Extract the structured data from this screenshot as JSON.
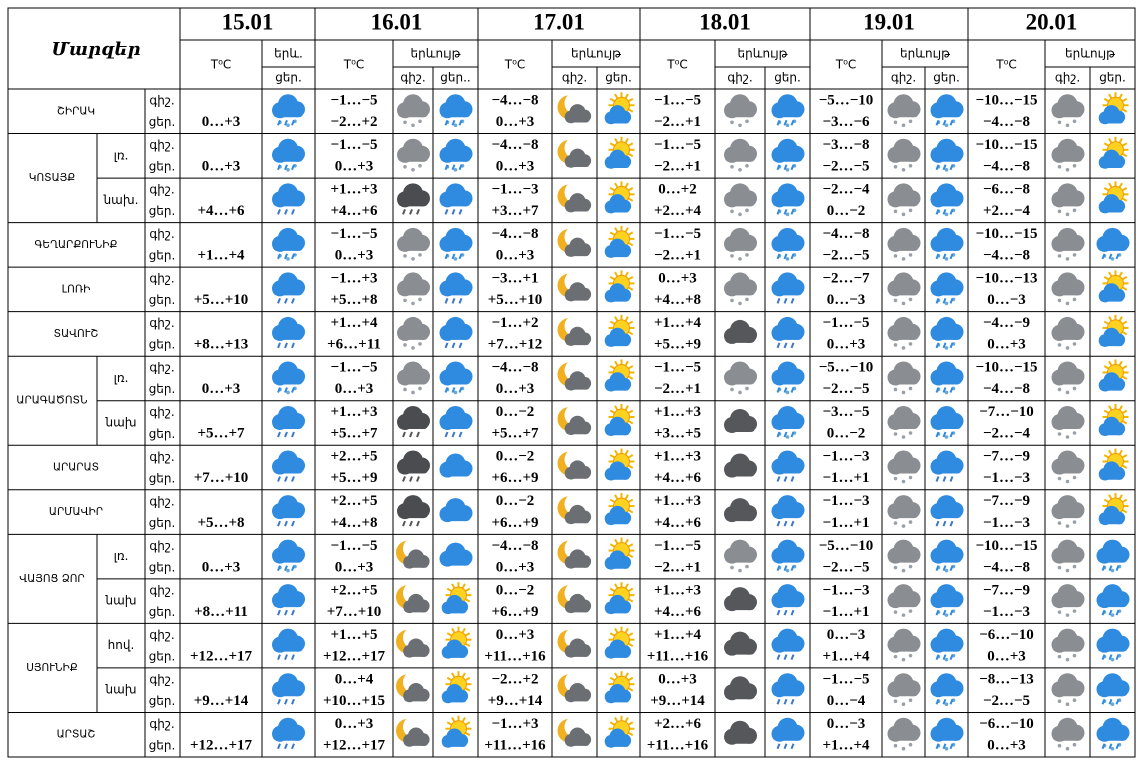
{
  "header": {
    "title": "Մարզեր",
    "temp_label": "T⁰C",
    "days": [
      {
        "date": "15.01",
        "phenomenon": "երև.",
        "parts": [
          "ցեր."
        ]
      },
      {
        "date": "16.01",
        "phenomenon": "երևույթ",
        "parts": [
          "գիշ.",
          "ցեր.."
        ]
      },
      {
        "date": "17.01",
        "phenomenon": "երևույթ",
        "parts": [
          "գիշ.",
          "ցեր."
        ]
      },
      {
        "date": "18.01",
        "phenomenon": "երևույթ",
        "parts": [
          "գիշ.",
          "ցեր."
        ]
      },
      {
        "date": "19.01",
        "phenomenon": "երևույթ",
        "parts": [
          "գիշ.",
          "ցեր."
        ]
      },
      {
        "date": "20.01",
        "phenomenon": "երևույթ",
        "parts": [
          "գիշ.",
          "ցեր."
        ]
      }
    ]
  },
  "row_labels": [
    "գիշ.",
    "ցեր."
  ],
  "regions": [
    {
      "name": "ՇԻՐԱԿ",
      "rows": [
        {
          "sub": null,
          "temps": [
            "0…+3",
            "−1…−5",
            "−2…+2",
            "−4…−8",
            "0…+3",
            "−1…−5",
            "−2…+1",
            "−5…−10",
            "−3…−6",
            "−10…−15",
            "−4…−8"
          ]
        }
      ]
    },
    {
      "name": "ԿՈՏԱՅՔ",
      "rows": [
        {
          "sub": "լռ.",
          "temps": [
            "0…+3",
            "−1…−5",
            "0…+3",
            "−4…−8",
            "0…+3",
            "−1…−5",
            "−2…+1",
            "−3…−8",
            "−2…−5",
            "−10…−15",
            "−4…−8"
          ]
        },
        {
          "sub": "նախ.",
          "temps": [
            "+4…+6",
            "+1…+3",
            "+4…+6",
            "−1…−3",
            "+3…+7",
            "0…+2",
            "+2…+4",
            "−2…−4",
            "0…−2",
            "−6…−8",
            "+2…−4"
          ]
        }
      ]
    },
    {
      "name": "ԳԵՂԱՐՔՈՒՆԻՔ",
      "rows": [
        {
          "sub": null,
          "temps": [
            "+1…+4",
            "−1…−5",
            "0…+3",
            "−4…−8",
            "0…+3",
            "−1…−5",
            "−2…+1",
            "−4…−8",
            "−2…−5",
            "−10…−15",
            "−4…−8"
          ]
        }
      ]
    },
    {
      "name": "ԼՈՌԻ",
      "rows": [
        {
          "sub": null,
          "temps": [
            "+5…+10",
            "−1…+3",
            "+5…+8",
            "−3…+1",
            "+5…+10",
            "0…+3",
            "+4…+8",
            "−2…−7",
            "0…−3",
            "−10…−13",
            "0…−3"
          ]
        }
      ]
    },
    {
      "name": "ՏԱՎՈՒՇ",
      "rows": [
        {
          "sub": null,
          "temps": [
            "+8…+13",
            "+1…+4",
            "+6…+11",
            "−1…+2",
            "+7…+12",
            "+1…+4",
            "+5…+9",
            "−1…−5",
            "0…+3",
            "−4…−9",
            "0…+3"
          ]
        }
      ]
    },
    {
      "name": "ԱՐԱԳԱԾՈՏՆ",
      "rows": [
        {
          "sub": "լռ.",
          "temps": [
            "0…+3",
            "−1…−5",
            "0…+3",
            "−4…−8",
            "0…+3",
            "−1…−5",
            "−2…+1",
            "−5…−10",
            "−2…−5",
            "−10…−15",
            "−4…−8"
          ]
        },
        {
          "sub": "նախ",
          "temps": [
            "+5…+7",
            "+1…+3",
            "+5…+7",
            "0…−2",
            "+5…+7",
            "+1…+3",
            "+3…+5",
            "−3…−5",
            "0…−2",
            "−7…−10",
            "−2…−4"
          ]
        }
      ]
    },
    {
      "name": "ԱՐԱՐԱՏ",
      "rows": [
        {
          "sub": null,
          "temps": [
            "+7…+10",
            "+2…+5",
            "+5…+9",
            "0…−2",
            "+6…+9",
            "+1…+3",
            "+4…+6",
            "−1…−3",
            "−1…+1",
            "−7…−9",
            "−1…−3"
          ]
        }
      ]
    },
    {
      "name": "ԱՐՄԱՎԻՐ",
      "rows": [
        {
          "sub": null,
          "temps": [
            "+5…+8",
            "+2…+5",
            "+4…+8",
            "0…−2",
            "+6…+9",
            "+1…+3",
            "+4…+6",
            "−1…−3",
            "−1…+1",
            "−7…−9",
            "−1…−3"
          ]
        }
      ]
    },
    {
      "name": "ՎԱՅՈՑ ՁՈՐ",
      "rows": [
        {
          "sub": "լռ.",
          "temps": [
            "0…+3",
            "−1…−5",
            "0…+3",
            "−4…−8",
            "0…+3",
            "−1…−5",
            "−2…+1",
            "−5…−10",
            "−2…−5",
            "−10…−15",
            "−4…−8"
          ]
        },
        {
          "sub": "նախ",
          "temps": [
            "+8…+11",
            "+2…+5",
            "+7…+10",
            "0…−2",
            "+6…+9",
            "+1…+3",
            "+4…+6",
            "−1…−3",
            "−1…+1",
            "−7…−9",
            "−1…−3"
          ]
        }
      ]
    },
    {
      "name": "ՍՅՈՒՆԻՔ",
      "rows": [
        {
          "sub": "հով.",
          "temps": [
            "+12…+17",
            "+1…+5",
            "+12…+17",
            "0…+3",
            "+11…+16",
            "+1…+4",
            "+11…+16",
            "0…−3",
            "+1…+4",
            "−6…−10",
            "0…+3"
          ]
        },
        {
          "sub": "նախ",
          "temps": [
            "+9…+14",
            "0…+4",
            "+10…+15",
            "−2…+2",
            "+9…+14",
            "0…+3",
            "+9…+14",
            "−1…−5",
            "0…−4",
            "−8…−13",
            "−2…−5"
          ]
        }
      ]
    },
    {
      "name": "ԱՐՏԱՇ",
      "rows": [
        {
          "sub": null,
          "temps": [
            "+12…+17",
            "0…+3",
            "+12…+17",
            "−1…+3",
            "+11…+16",
            "+2…+6",
            "+11…+16",
            "0…−3",
            "+1…+4",
            "−6…−10",
            "0…+3"
          ]
        }
      ]
    }
  ]
}
